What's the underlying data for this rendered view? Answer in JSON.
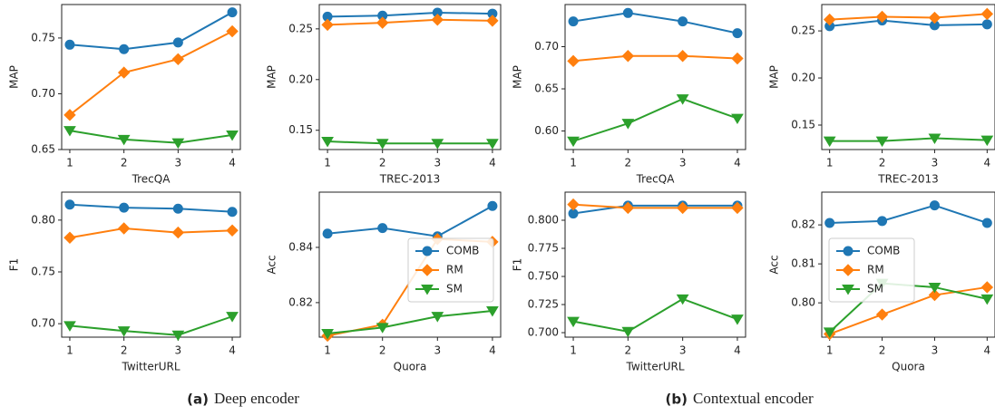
{
  "chart_data": [
    {
      "type": "line",
      "xlabel": "TrecQA",
      "ylabel": "MAP",
      "x": [
        1,
        2,
        3,
        4
      ],
      "xlim": [
        0.85,
        4.15
      ],
      "xticks": [
        1,
        2,
        3,
        4
      ],
      "ylim": [
        0.65,
        0.78
      ],
      "yticks": [
        0.65,
        {
          "value": 0.7,
          "label": "0.70"
        },
        0.75
      ],
      "series": [
        {
          "color": "#1f77b4",
          "marker": "circle",
          "values": [
            0.744,
            0.74,
            0.746,
            0.773
          ]
        },
        {
          "color": "#ff7f0e",
          "marker": "diamond",
          "values": [
            0.681,
            0.719,
            0.731,
            0.756
          ]
        },
        {
          "color": "#2ca02c",
          "marker": "triangle-down",
          "values": [
            0.667,
            0.659,
            0.656,
            0.663
          ]
        }
      ]
    },
    {
      "type": "line",
      "xlabel": "TREC-2013",
      "ylabel": "MAP",
      "x": [
        1,
        2,
        3,
        4
      ],
      "xlim": [
        0.85,
        4.15
      ],
      "xticks": [
        1,
        2,
        3,
        4
      ],
      "ylim": [
        0.131,
        0.274
      ],
      "yticks": [
        0.15,
        {
          "value": 0.2,
          "label": "0.20"
        },
        0.25
      ],
      "series": [
        {
          "color": "#1f77b4",
          "marker": "circle",
          "values": [
            0.262,
            0.263,
            0.266,
            0.265
          ]
        },
        {
          "color": "#ff7f0e",
          "marker": "diamond",
          "values": [
            0.254,
            0.256,
            0.259,
            0.258
          ]
        },
        {
          "color": "#2ca02c",
          "marker": "triangle-down",
          "values": [
            0.139,
            0.137,
            0.137,
            0.137
          ]
        }
      ]
    },
    {
      "type": "line",
      "xlabel": "TrecQA",
      "ylabel": "MAP",
      "x": [
        1,
        2,
        3,
        4
      ],
      "xlim": [
        0.85,
        4.15
      ],
      "xticks": [
        1,
        2,
        3,
        4
      ],
      "ylim": [
        0.578,
        0.75
      ],
      "yticks": [
        {
          "value": 0.6,
          "label": "0.60"
        },
        0.65,
        {
          "value": 0.7,
          "label": "0.70"
        }
      ],
      "series": [
        {
          "color": "#1f77b4",
          "marker": "circle",
          "values": [
            0.73,
            0.74,
            0.73,
            0.716
          ]
        },
        {
          "color": "#ff7f0e",
          "marker": "diamond",
          "values": [
            0.683,
            0.689,
            0.689,
            0.686
          ]
        },
        {
          "color": "#2ca02c",
          "marker": "triangle-down",
          "values": [
            0.588,
            0.609,
            0.638,
            0.615
          ]
        }
      ]
    },
    {
      "type": "line",
      "xlabel": "TREC-2013",
      "ylabel": "MAP",
      "x": [
        1,
        2,
        3,
        4
      ],
      "xlim": [
        0.85,
        4.15
      ],
      "xticks": [
        1,
        2,
        3,
        4
      ],
      "ylim": [
        0.124,
        0.278
      ],
      "yticks": [
        0.15,
        {
          "value": 0.2,
          "label": "0.20"
        },
        0.25
      ],
      "series": [
        {
          "color": "#1f77b4",
          "marker": "circle",
          "values": [
            0.255,
            0.261,
            0.256,
            0.257
          ]
        },
        {
          "color": "#ff7f0e",
          "marker": "diamond",
          "values": [
            0.262,
            0.265,
            0.264,
            0.268
          ]
        },
        {
          "color": "#2ca02c",
          "marker": "triangle-down",
          "values": [
            0.133,
            0.133,
            0.136,
            0.134
          ]
        }
      ]
    },
    {
      "type": "line",
      "xlabel": "TwitterURL",
      "ylabel": "F1",
      "x": [
        1,
        2,
        3,
        4
      ],
      "xlim": [
        0.85,
        4.15
      ],
      "xticks": [
        1,
        2,
        3,
        4
      ],
      "ylim": [
        0.687,
        0.827
      ],
      "yticks": [
        {
          "value": 0.7,
          "label": "0.70"
        },
        0.75,
        {
          "value": 0.8,
          "label": "0.80"
        }
      ],
      "series": [
        {
          "color": "#1f77b4",
          "marker": "circle",
          "values": [
            0.815,
            0.812,
            0.811,
            0.808
          ]
        },
        {
          "color": "#ff7f0e",
          "marker": "diamond",
          "values": [
            0.783,
            0.792,
            0.788,
            0.79
          ]
        },
        {
          "color": "#2ca02c",
          "marker": "triangle-down",
          "values": [
            0.698,
            0.693,
            0.689,
            0.707
          ]
        }
      ]
    },
    {
      "type": "line",
      "xlabel": "Quora",
      "ylabel": "Acc",
      "x": [
        1,
        2,
        3,
        4
      ],
      "xlim": [
        0.85,
        4.15
      ],
      "xticks": [
        1,
        2,
        3,
        4
      ],
      "ylim": [
        0.8075,
        0.86
      ],
      "yticks": [
        0.82,
        0.84
      ],
      "legend": "center right",
      "series": [
        {
          "name": "COMB",
          "color": "#1f77b4",
          "marker": "circle",
          "values": [
            0.845,
            0.847,
            0.844,
            0.855
          ]
        },
        {
          "name": "RM",
          "color": "#ff7f0e",
          "marker": "diamond",
          "values": [
            0.808,
            0.812,
            0.843,
            0.842
          ]
        },
        {
          "name": "SM",
          "color": "#2ca02c",
          "marker": "triangle-down",
          "values": [
            0.8088,
            0.811,
            0.815,
            0.817
          ]
        }
      ]
    },
    {
      "type": "line",
      "xlabel": "TwitterURL",
      "ylabel": "F1",
      "x": [
        1,
        2,
        3,
        4
      ],
      "xlim": [
        0.85,
        4.15
      ],
      "xticks": [
        1,
        2,
        3,
        4
      ],
      "ylim": [
        0.696,
        0.825
      ],
      "yticks": [
        {
          "value": 0.7,
          "label": "0.700"
        },
        0.725,
        {
          "value": 0.75,
          "label": "0.750"
        },
        0.775,
        {
          "value": 0.8,
          "label": "0.800"
        }
      ],
      "series": [
        {
          "color": "#1f77b4",
          "marker": "circle",
          "values": [
            0.806,
            0.813,
            0.813,
            0.813
          ]
        },
        {
          "color": "#ff7f0e",
          "marker": "diamond",
          "values": [
            0.814,
            0.811,
            0.811,
            0.811
          ]
        },
        {
          "color": "#2ca02c",
          "marker": "triangle-down",
          "values": [
            0.71,
            0.701,
            0.73,
            0.712
          ]
        }
      ]
    },
    {
      "type": "line",
      "xlabel": "Quora",
      "ylabel": "Acc",
      "x": [
        1,
        2,
        3,
        4
      ],
      "xlim": [
        0.85,
        4.15
      ],
      "xticks": [
        1,
        2,
        3,
        4
      ],
      "ylim": [
        0.7912,
        0.8284
      ],
      "yticks": [
        {
          "value": 0.8,
          "label": "0.80"
        },
        0.81,
        0.82
      ],
      "legend": "center left",
      "series": [
        {
          "name": "COMB",
          "color": "#1f77b4",
          "marker": "circle",
          "values": [
            0.8205,
            0.821,
            0.825,
            0.8205
          ]
        },
        {
          "name": "RM",
          "color": "#ff7f0e",
          "marker": "diamond",
          "values": [
            0.792,
            0.797,
            0.802,
            0.804
          ]
        },
        {
          "name": "SM",
          "color": "#2ca02c",
          "marker": "triangle-down",
          "values": [
            0.7925,
            0.805,
            0.804,
            0.801
          ]
        }
      ]
    }
  ],
  "captions": [
    {
      "label": "(a)",
      "text": "Deep encoder"
    },
    {
      "label": "(b)",
      "text": "Contextual encoder"
    }
  ]
}
